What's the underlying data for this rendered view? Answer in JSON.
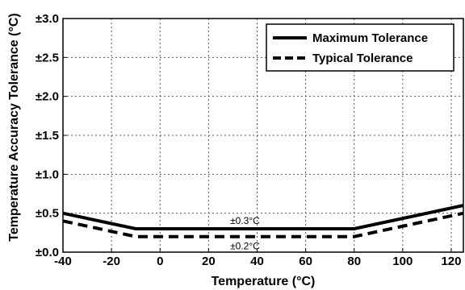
{
  "chart_data": {
    "type": "line",
    "title": "",
    "xlabel": "Temperature (°C)",
    "ylabel": "Temperature Accuracy Tolerance (°C)",
    "xlim": [
      -40,
      125
    ],
    "ylim": [
      0,
      3.0
    ],
    "x_ticks": [
      -40,
      -20,
      0,
      20,
      40,
      60,
      80,
      100,
      120
    ],
    "x_tick_labels": [
      "-40",
      "-20",
      "0",
      "20",
      "40",
      "60",
      "80",
      "100",
      "120"
    ],
    "y_ticks": [
      0,
      0.5,
      1.0,
      1.5,
      2.0,
      2.5,
      3.0
    ],
    "y_tick_labels": [
      "±0.0",
      "±0.5",
      "±1.0",
      "±1.5",
      "±2.0",
      "±2.5",
      "±3.0"
    ],
    "grid": true,
    "legend_position": "top-right",
    "series": [
      {
        "name": "Maximum Tolerance",
        "style": "solid",
        "color": "#000000",
        "x": [
          -40,
          -10,
          80,
          125
        ],
        "y": [
          0.5,
          0.3,
          0.3,
          0.6
        ]
      },
      {
        "name": "Typical Tolerance",
        "style": "dashed",
        "color": "#000000",
        "x": [
          -40,
          -10,
          80,
          125
        ],
        "y": [
          0.4,
          0.2,
          0.2,
          0.5
        ]
      }
    ],
    "annotations": [
      {
        "text": "±0.3°C",
        "x": 35,
        "y": 0.3,
        "placement": "above"
      },
      {
        "text": "±0.2°C",
        "x": 35,
        "y": 0.2,
        "placement": "below"
      }
    ]
  }
}
